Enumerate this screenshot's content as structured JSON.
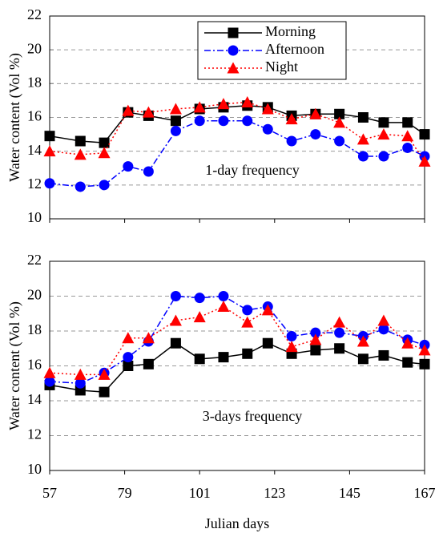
{
  "chart_data": [
    {
      "type": "line",
      "y_label": "Water content (Vol %)",
      "annotation": "1-day frequency",
      "x": [
        57,
        66,
        73,
        80,
        86,
        94,
        101,
        108,
        115,
        121,
        128,
        135,
        142,
        149,
        155,
        162,
        167
      ],
      "xlim": [
        57,
        167
      ],
      "xticks": [
        57,
        79,
        101,
        123,
        145,
        167
      ],
      "ylim": [
        10,
        22
      ],
      "yticks": [
        10,
        12,
        14,
        16,
        18,
        20,
        22
      ],
      "grid": true,
      "legend": "top-right",
      "series": [
        {
          "name": "Morning",
          "color": "#000000",
          "marker": "square",
          "line_style": "solid",
          "values": [
            14.9,
            14.6,
            14.5,
            16.3,
            16.1,
            15.8,
            16.5,
            16.6,
            16.7,
            16.6,
            16.1,
            16.2,
            16.2,
            16.0,
            15.7,
            15.7,
            15.0
          ]
        },
        {
          "name": "Afternoon",
          "color": "#0000ff",
          "marker": "circle",
          "line_style": "dashdot",
          "values": [
            12.1,
            11.9,
            12.0,
            13.1,
            12.8,
            15.2,
            15.8,
            15.8,
            15.8,
            15.3,
            14.6,
            15.0,
            14.6,
            13.7,
            13.7,
            14.2,
            13.7
          ]
        },
        {
          "name": "Night",
          "color": "#ff0000",
          "marker": "triangle",
          "line_style": "dotted",
          "values": [
            14.0,
            13.8,
            13.9,
            16.4,
            16.3,
            16.5,
            16.6,
            16.8,
            16.9,
            16.5,
            15.9,
            16.2,
            15.7,
            14.7,
            15.0,
            14.9,
            13.4
          ]
        }
      ]
    },
    {
      "type": "line",
      "y_label": "Water content (Vol %)",
      "annotation": "3-days frequency",
      "x_label": "Julian days",
      "x": [
        57,
        66,
        73,
        80,
        86,
        94,
        101,
        108,
        115,
        121,
        128,
        135,
        142,
        149,
        155,
        162,
        167
      ],
      "xlim": [
        57,
        167
      ],
      "xticks": [
        57,
        79,
        101,
        123,
        145,
        167
      ],
      "xtick_labels": true,
      "ylim": [
        10,
        22
      ],
      "yticks": [
        10,
        12,
        14,
        16,
        18,
        20,
        22
      ],
      "grid": true,
      "series": [
        {
          "color": "#000000",
          "marker": "square",
          "line_style": "solid",
          "values": [
            14.9,
            14.6,
            14.5,
            16.0,
            16.1,
            17.3,
            16.4,
            16.5,
            16.7,
            17.3,
            16.7,
            16.9,
            17.0,
            16.4,
            16.6,
            16.2,
            16.1
          ]
        },
        {
          "color": "#0000ff",
          "marker": "circle",
          "line_style": "dashdot",
          "values": [
            15.1,
            15.0,
            15.6,
            16.5,
            17.4,
            20.0,
            19.9,
            20.0,
            19.2,
            19.4,
            17.7,
            17.9,
            17.9,
            17.7,
            18.1,
            17.5,
            17.2
          ]
        },
        {
          "color": "#ff0000",
          "marker": "triangle",
          "line_style": "dotted",
          "values": [
            15.6,
            15.5,
            15.5,
            17.6,
            17.6,
            18.6,
            18.8,
            19.4,
            18.5,
            19.2,
            17.1,
            17.5,
            18.5,
            17.4,
            18.6,
            17.3,
            16.9
          ]
        }
      ]
    }
  ]
}
